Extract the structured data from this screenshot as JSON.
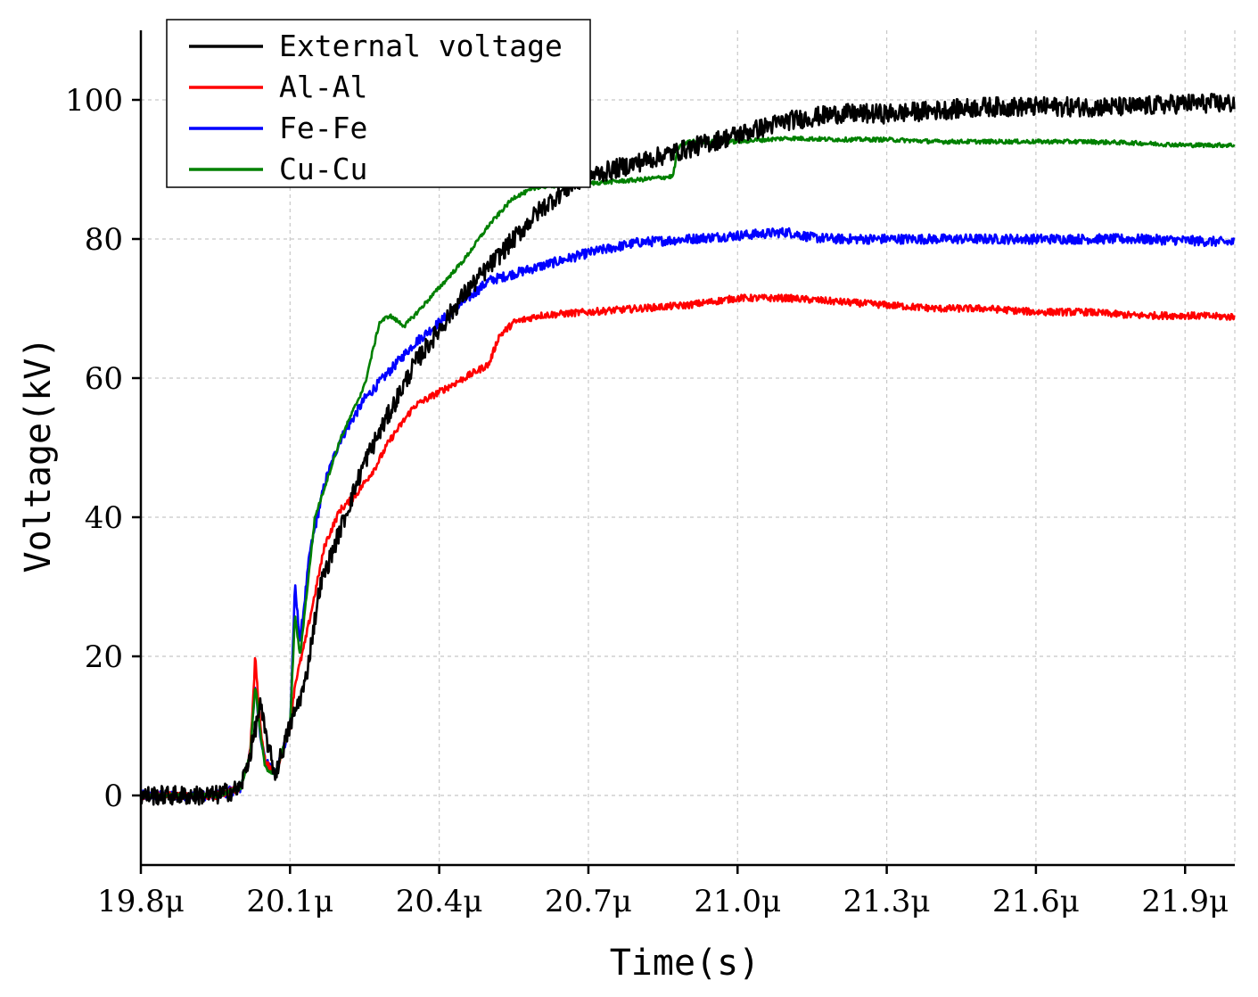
{
  "chart_data": {
    "type": "line",
    "title": "",
    "xlabel": "Time(s)",
    "ylabel": "Voltage(kV)",
    "xlim": [
      19.8,
      22.0
    ],
    "ylim": [
      -10,
      110
    ],
    "grid": true,
    "legend_position": "top-left",
    "x_ticks": [
      {
        "value": 19.8,
        "label": "19.8μ"
      },
      {
        "value": 20.1,
        "label": "20.1μ"
      },
      {
        "value": 20.4,
        "label": "20.4μ"
      },
      {
        "value": 20.7,
        "label": "20.7μ"
      },
      {
        "value": 21.0,
        "label": "21.0μ"
      },
      {
        "value": 21.3,
        "label": "21.3μ"
      },
      {
        "value": 21.6,
        "label": "21.6μ"
      },
      {
        "value": 21.9,
        "label": "21.9μ"
      }
    ],
    "y_ticks": [
      {
        "value": 0,
        "label": "0"
      },
      {
        "value": 20,
        "label": "20"
      },
      {
        "value": 40,
        "label": "40"
      },
      {
        "value": 60,
        "label": "60"
      },
      {
        "value": 80,
        "label": "80"
      },
      {
        "value": 100,
        "label": "100"
      }
    ],
    "series": [
      {
        "name": "External voltage",
        "color": "#000000",
        "noise": 1.4,
        "points": [
          [
            19.8,
            0
          ],
          [
            19.95,
            0
          ],
          [
            20.0,
            1
          ],
          [
            20.02,
            6
          ],
          [
            20.04,
            13
          ],
          [
            20.05,
            9
          ],
          [
            20.07,
            3
          ],
          [
            20.1,
            10
          ],
          [
            20.13,
            16
          ],
          [
            20.16,
            30
          ],
          [
            20.2,
            38
          ],
          [
            20.25,
            48
          ],
          [
            20.3,
            55
          ],
          [
            20.35,
            62
          ],
          [
            20.4,
            67
          ],
          [
            20.45,
            72
          ],
          [
            20.5,
            76
          ],
          [
            20.55,
            80
          ],
          [
            20.6,
            84
          ],
          [
            20.65,
            87
          ],
          [
            20.7,
            89
          ],
          [
            20.8,
            91
          ],
          [
            20.9,
            93
          ],
          [
            21.0,
            95
          ],
          [
            21.1,
            97
          ],
          [
            21.2,
            98
          ],
          [
            21.3,
            98
          ],
          [
            21.4,
            98.5
          ],
          [
            21.5,
            99
          ],
          [
            21.6,
            99
          ],
          [
            21.7,
            99
          ],
          [
            21.8,
            99
          ],
          [
            21.9,
            99.5
          ],
          [
            22.0,
            99.5
          ]
        ]
      },
      {
        "name": "Al-Al",
        "color": "#ff0000",
        "noise": 0.5,
        "points": [
          [
            19.8,
            0
          ],
          [
            19.95,
            0
          ],
          [
            20.0,
            1
          ],
          [
            20.02,
            6
          ],
          [
            20.03,
            20
          ],
          [
            20.04,
            10
          ],
          [
            20.05,
            5
          ],
          [
            20.07,
            3
          ],
          [
            20.1,
            10
          ],
          [
            20.11,
            16
          ],
          [
            20.13,
            22
          ],
          [
            20.15,
            29
          ],
          [
            20.17,
            36
          ],
          [
            20.2,
            41
          ],
          [
            20.23,
            43
          ],
          [
            20.27,
            47
          ],
          [
            20.3,
            51
          ],
          [
            20.35,
            56
          ],
          [
            20.4,
            58
          ],
          [
            20.45,
            60
          ],
          [
            20.5,
            62
          ],
          [
            20.52,
            66
          ],
          [
            20.55,
            68
          ],
          [
            20.6,
            69
          ],
          [
            20.7,
            69.5
          ],
          [
            20.8,
            70
          ],
          [
            20.9,
            70.5
          ],
          [
            21.0,
            71.5
          ],
          [
            21.1,
            71.5
          ],
          [
            21.2,
            71
          ],
          [
            21.3,
            70.5
          ],
          [
            21.4,
            70
          ],
          [
            21.5,
            70
          ],
          [
            21.6,
            69.5
          ],
          [
            21.7,
            69.5
          ],
          [
            21.8,
            69
          ],
          [
            21.9,
            69
          ],
          [
            22.0,
            68.8
          ]
        ]
      },
      {
        "name": "Fe-Fe",
        "color": "#0000ff",
        "noise": 0.7,
        "points": [
          [
            19.8,
            0
          ],
          [
            19.95,
            0
          ],
          [
            20.0,
            1
          ],
          [
            20.02,
            6
          ],
          [
            20.03,
            16
          ],
          [
            20.04,
            9
          ],
          [
            20.05,
            5
          ],
          [
            20.07,
            3
          ],
          [
            20.1,
            10
          ],
          [
            20.11,
            30
          ],
          [
            20.12,
            22
          ],
          [
            20.14,
            35
          ],
          [
            20.17,
            45
          ],
          [
            20.2,
            51
          ],
          [
            20.25,
            57
          ],
          [
            20.3,
            61
          ],
          [
            20.35,
            65
          ],
          [
            20.4,
            68
          ],
          [
            20.45,
            71
          ],
          [
            20.5,
            74
          ],
          [
            20.55,
            75
          ],
          [
            20.6,
            76
          ],
          [
            20.65,
            77
          ],
          [
            20.7,
            78
          ],
          [
            20.8,
            79.5
          ],
          [
            20.9,
            80
          ],
          [
            21.0,
            80.5
          ],
          [
            21.1,
            81
          ],
          [
            21.15,
            80.2
          ],
          [
            21.2,
            80
          ],
          [
            21.3,
            80
          ],
          [
            21.4,
            80
          ],
          [
            21.5,
            80
          ],
          [
            21.6,
            80
          ],
          [
            21.7,
            80
          ],
          [
            21.8,
            80
          ],
          [
            21.9,
            79.8
          ],
          [
            22.0,
            79.5
          ]
        ]
      },
      {
        "name": "Cu-Cu",
        "color": "#008000",
        "noise": 0.3,
        "points": [
          [
            19.8,
            0
          ],
          [
            19.95,
            0
          ],
          [
            20.0,
            1
          ],
          [
            20.02,
            6
          ],
          [
            20.03,
            16
          ],
          [
            20.04,
            9
          ],
          [
            20.05,
            4
          ],
          [
            20.07,
            3
          ],
          [
            20.1,
            10
          ],
          [
            20.11,
            26
          ],
          [
            20.12,
            20
          ],
          [
            20.15,
            40
          ],
          [
            20.2,
            51
          ],
          [
            20.25,
            59
          ],
          [
            20.28,
            68
          ],
          [
            20.3,
            69
          ],
          [
            20.33,
            67.5
          ],
          [
            20.35,
            69
          ],
          [
            20.4,
            73
          ],
          [
            20.45,
            77
          ],
          [
            20.5,
            82
          ],
          [
            20.55,
            86
          ],
          [
            20.6,
            87.5
          ],
          [
            20.7,
            88
          ],
          [
            20.8,
            88.5
          ],
          [
            20.87,
            89
          ],
          [
            20.88,
            93
          ],
          [
            20.9,
            94
          ],
          [
            21.0,
            94
          ],
          [
            21.1,
            94.5
          ],
          [
            21.2,
            94.3
          ],
          [
            21.3,
            94.3
          ],
          [
            21.4,
            94
          ],
          [
            21.5,
            94
          ],
          [
            21.6,
            94
          ],
          [
            21.7,
            94
          ],
          [
            21.8,
            93.8
          ],
          [
            21.9,
            93.5
          ],
          [
            22.0,
            93.5
          ]
        ]
      }
    ]
  }
}
